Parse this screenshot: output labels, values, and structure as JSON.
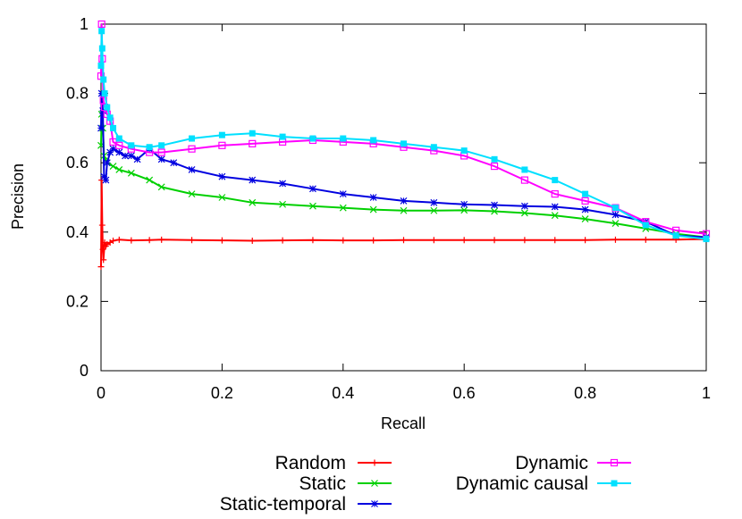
{
  "chart_data": {
    "type": "line",
    "xlabel": "Recall",
    "ylabel": "Precision",
    "xlim": [
      0,
      1
    ],
    "ylim": [
      0,
      1
    ],
    "x_ticks": [
      "0",
      "0.2",
      "0.4",
      "0.6",
      "0.8",
      "1"
    ],
    "y_ticks": [
      "0",
      "0.2",
      "0.4",
      "0.6",
      "0.8",
      "1"
    ],
    "grid": false,
    "legend_position": "bottom",
    "series": [
      {
        "name": "Random",
        "color": "#ff0000",
        "marker": "plus",
        "x": [
          0.0,
          0.001,
          0.002,
          0.003,
          0.004,
          0.006,
          0.008,
          0.01,
          0.015,
          0.02,
          0.03,
          0.05,
          0.08,
          0.1,
          0.15,
          0.2,
          0.25,
          0.3,
          0.35,
          0.4,
          0.45,
          0.5,
          0.55,
          0.6,
          0.65,
          0.7,
          0.75,
          0.8,
          0.85,
          0.9,
          0.95,
          1.0
        ],
        "y": [
          0.3,
          0.55,
          0.42,
          0.35,
          0.32,
          0.37,
          0.36,
          0.365,
          0.37,
          0.375,
          0.378,
          0.376,
          0.377,
          0.378,
          0.377,
          0.376,
          0.375,
          0.376,
          0.377,
          0.376,
          0.376,
          0.377,
          0.377,
          0.377,
          0.377,
          0.377,
          0.377,
          0.377,
          0.378,
          0.378,
          0.378,
          0.38
        ]
      },
      {
        "name": "Static",
        "color": "#00d000",
        "marker": "cross",
        "x": [
          0.0,
          0.001,
          0.003,
          0.005,
          0.01,
          0.02,
          0.03,
          0.05,
          0.08,
          0.1,
          0.15,
          0.2,
          0.25,
          0.3,
          0.35,
          0.4,
          0.45,
          0.5,
          0.55,
          0.6,
          0.65,
          0.7,
          0.75,
          0.8,
          0.85,
          0.9,
          0.95,
          1.0
        ],
        "y": [
          0.65,
          0.74,
          0.7,
          0.62,
          0.6,
          0.59,
          0.58,
          0.57,
          0.55,
          0.53,
          0.51,
          0.5,
          0.485,
          0.48,
          0.475,
          0.47,
          0.465,
          0.462,
          0.462,
          0.463,
          0.46,
          0.455,
          0.448,
          0.438,
          0.425,
          0.41,
          0.395,
          0.385
        ]
      },
      {
        "name": "Static-temporal",
        "color": "#0000e0",
        "marker": "star",
        "x": [
          0.0,
          0.001,
          0.003,
          0.005,
          0.008,
          0.01,
          0.015,
          0.02,
          0.03,
          0.04,
          0.05,
          0.06,
          0.08,
          0.1,
          0.12,
          0.15,
          0.2,
          0.25,
          0.3,
          0.35,
          0.4,
          0.45,
          0.5,
          0.55,
          0.6,
          0.65,
          0.7,
          0.75,
          0.8,
          0.85,
          0.9,
          0.95,
          1.0
        ],
        "y": [
          0.7,
          0.8,
          0.75,
          0.56,
          0.55,
          0.6,
          0.63,
          0.64,
          0.63,
          0.62,
          0.62,
          0.61,
          0.64,
          0.61,
          0.6,
          0.58,
          0.56,
          0.55,
          0.54,
          0.525,
          0.51,
          0.5,
          0.49,
          0.485,
          0.48,
          0.478,
          0.475,
          0.473,
          0.465,
          0.45,
          0.43,
          0.39,
          0.385
        ]
      },
      {
        "name": "Dynamic",
        "color": "#ff00ff",
        "marker": "square",
        "x": [
          0.0,
          0.001,
          0.002,
          0.004,
          0.006,
          0.01,
          0.015,
          0.02,
          0.03,
          0.05,
          0.08,
          0.1,
          0.15,
          0.2,
          0.25,
          0.3,
          0.35,
          0.4,
          0.45,
          0.5,
          0.55,
          0.6,
          0.65,
          0.7,
          0.75,
          0.8,
          0.85,
          0.9,
          0.95,
          1.0
        ],
        "y": [
          0.85,
          1.0,
          0.9,
          0.78,
          0.76,
          0.74,
          0.72,
          0.66,
          0.65,
          0.64,
          0.63,
          0.63,
          0.64,
          0.65,
          0.655,
          0.66,
          0.665,
          0.66,
          0.655,
          0.645,
          0.635,
          0.62,
          0.59,
          0.55,
          0.51,
          0.49,
          0.47,
          0.43,
          0.405,
          0.395
        ]
      },
      {
        "name": "Dynamic causal",
        "color": "#00e0ff",
        "marker": "filled-square",
        "x": [
          0.0,
          0.001,
          0.002,
          0.004,
          0.006,
          0.01,
          0.015,
          0.02,
          0.03,
          0.05,
          0.08,
          0.1,
          0.15,
          0.2,
          0.25,
          0.3,
          0.35,
          0.4,
          0.45,
          0.5,
          0.55,
          0.6,
          0.65,
          0.7,
          0.75,
          0.8,
          0.85,
          0.9,
          0.95,
          1.0
        ],
        "y": [
          0.88,
          0.98,
          0.93,
          0.84,
          0.8,
          0.76,
          0.73,
          0.7,
          0.67,
          0.65,
          0.645,
          0.65,
          0.67,
          0.68,
          0.685,
          0.675,
          0.67,
          0.67,
          0.665,
          0.655,
          0.645,
          0.635,
          0.61,
          0.58,
          0.55,
          0.51,
          0.47,
          0.42,
          0.39,
          0.38
        ]
      }
    ]
  }
}
